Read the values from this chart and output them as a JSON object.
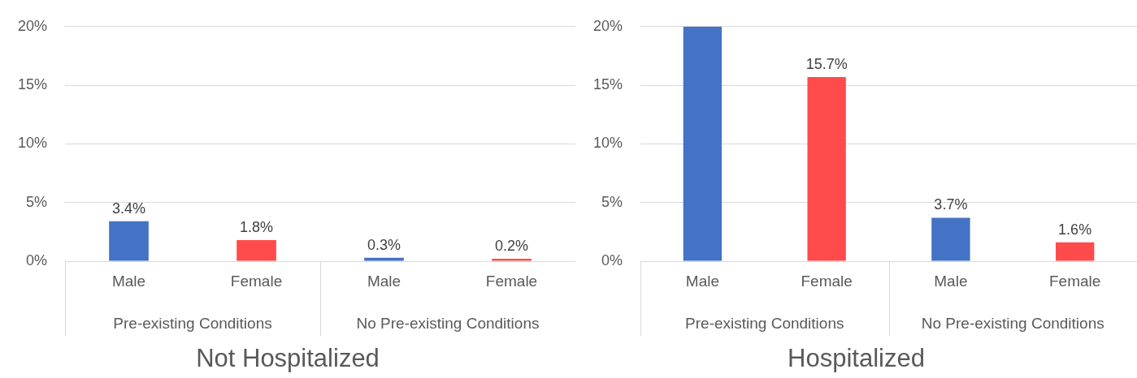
{
  "chart_data": [
    {
      "type": "bar",
      "title": "Not Hospitalized",
      "categories": [
        "Male",
        "Female",
        "Male",
        "Female"
      ],
      "values": [
        3.4,
        1.8,
        0.3,
        0.2
      ],
      "colors": [
        "#4472c4",
        "#ff4b4b",
        "#4472c4",
        "#ff4b4b"
      ],
      "value_labels": [
        "3.4%",
        "1.8%",
        "0.3%",
        "0.2%"
      ],
      "annotations": [
        "Pre-existing Conditions",
        "No Pre-existing Conditions"
      ],
      "ylim": [
        0,
        20
      ],
      "yticks": [
        {
          "value": 0,
          "label": "0%"
        },
        {
          "value": 5,
          "label": "5%"
        },
        {
          "value": 10,
          "label": "10%"
        },
        {
          "value": 15,
          "label": "15%"
        },
        {
          "value": 20,
          "label": "20%"
        }
      ],
      "grid": "y",
      "legend": false
    },
    {
      "type": "bar",
      "title": "Hospitalized",
      "categories": [
        "Male",
        "Female",
        "Male",
        "Female"
      ],
      "values": [
        20,
        15.7,
        3.7,
        1.6
      ],
      "colors": [
        "#4472c4",
        "#ff4b4b",
        "#4472c4",
        "#ff4b4b"
      ],
      "value_labels": [
        null,
        "15.7%",
        "3.7%",
        "1.6%"
      ],
      "annotations": [
        "Pre-existing Conditions",
        "No Pre-existing Conditions"
      ],
      "ylim": [
        0,
        20
      ],
      "yticks": [
        {
          "value": 0,
          "label": "0%"
        },
        {
          "value": 5,
          "label": "5%"
        },
        {
          "value": 10,
          "label": "10%"
        },
        {
          "value": 15,
          "label": "15%"
        },
        {
          "value": 20,
          "label": "20%"
        }
      ],
      "grid": "y",
      "legend": false
    }
  ]
}
